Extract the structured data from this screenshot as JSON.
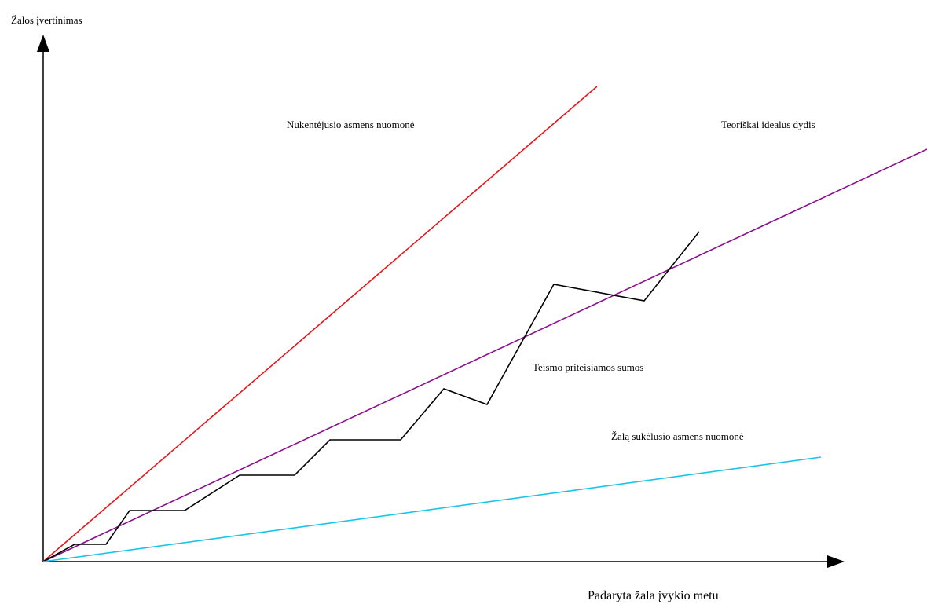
{
  "chart_data": {
    "type": "line",
    "title": "",
    "xlabel": "Padaryta žala įvykio metu",
    "ylabel": "Žalos įvertinimas",
    "grid": false,
    "legend": "none",
    "series": [
      {
        "name": "Nukentėjusio asmens nuomonė",
        "color": "#e8141a",
        "points": [
          [
            0,
            0
          ],
          [
            70.5,
            60.5
          ]
        ]
      },
      {
        "name": "Teoriškai idealus dydis",
        "color": "#8b108b",
        "points": [
          [
            0,
            0
          ],
          [
            112.5,
            52.5
          ]
        ]
      },
      {
        "name": "Teismo priteisiamos sumos",
        "color": "#000000",
        "points": [
          [
            0,
            0
          ],
          [
            4,
            2.2
          ],
          [
            8,
            2.2
          ],
          [
            11,
            6.5
          ],
          [
            18,
            6.5
          ],
          [
            25,
            11
          ],
          [
            32,
            11
          ],
          [
            36.5,
            15.5
          ],
          [
            45.5,
            15.5
          ],
          [
            51,
            22
          ],
          [
            56.5,
            20
          ],
          [
            65,
            35.3
          ],
          [
            76.5,
            33.2
          ],
          [
            83.5,
            42
          ]
        ]
      },
      {
        "name": "Žalą sukėlusio asmens nuomonė",
        "color": "#19c3ea",
        "points": [
          [
            0,
            0
          ],
          [
            99,
            13.3
          ]
        ]
      }
    ]
  }
}
